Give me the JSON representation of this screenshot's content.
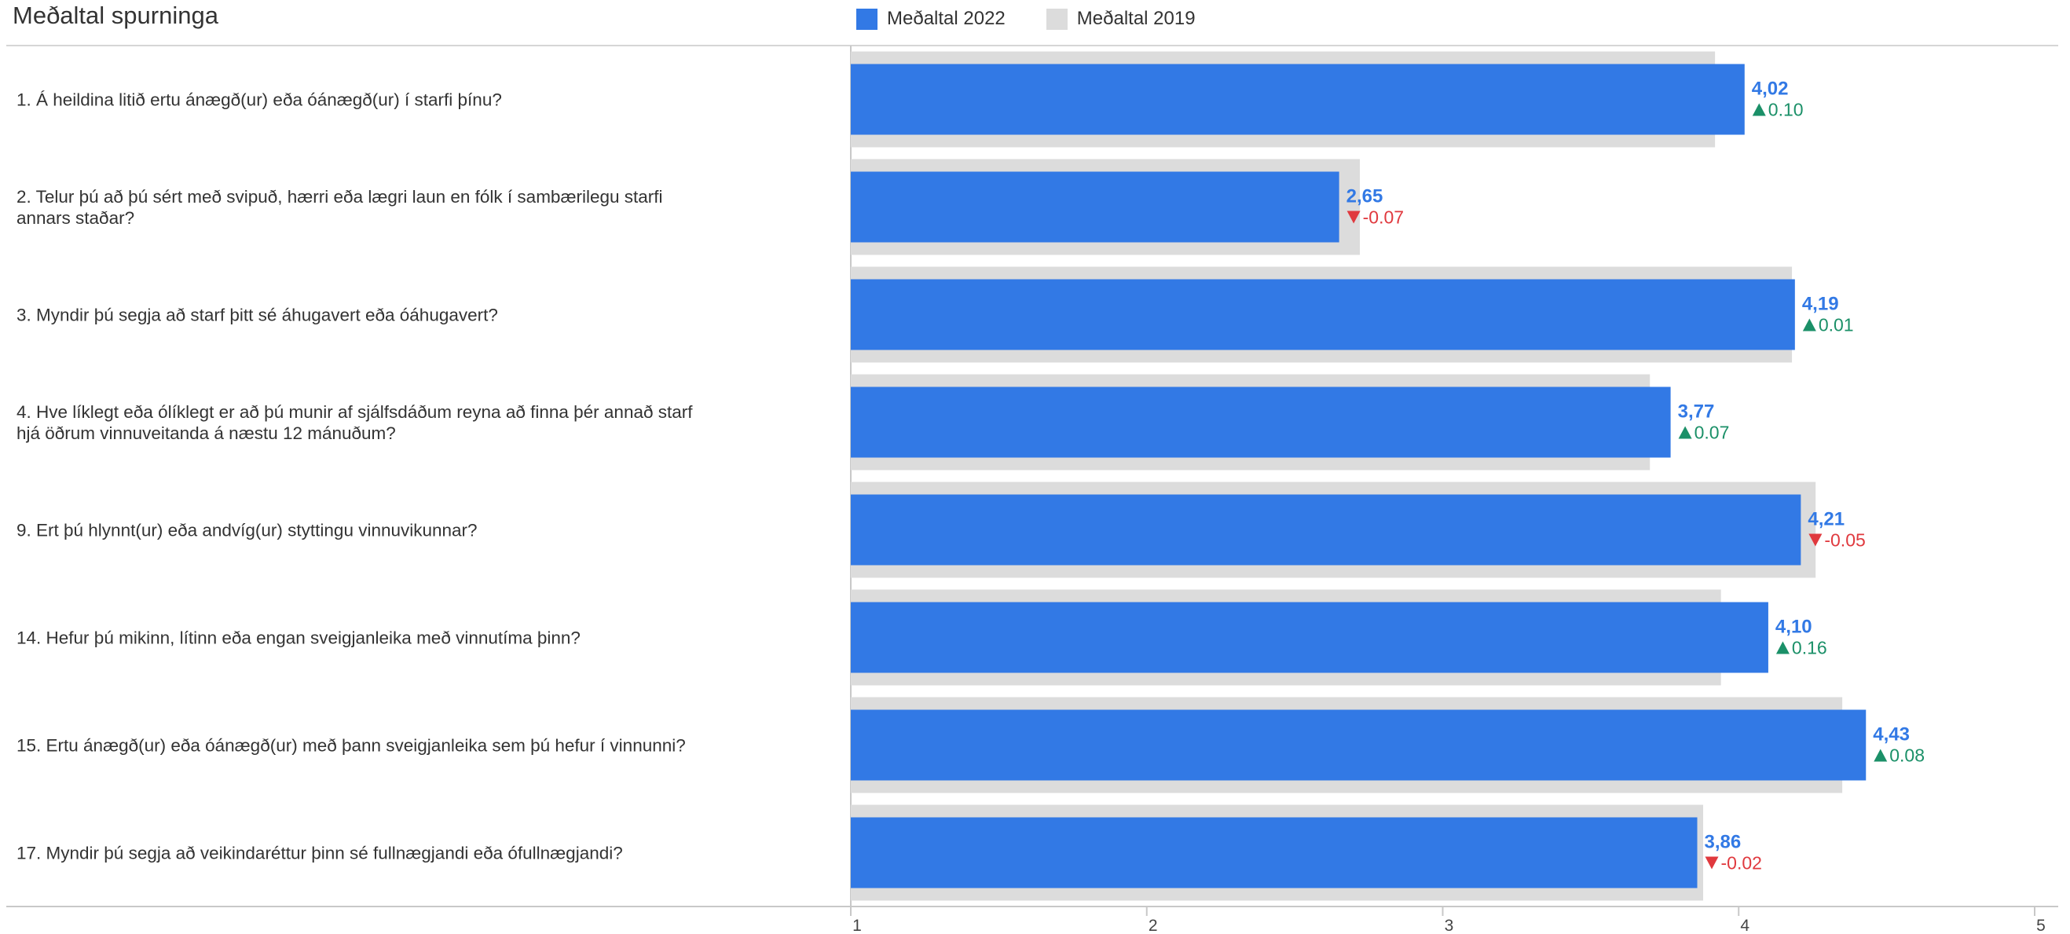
{
  "title": "Meðaltal spurninga",
  "legend": {
    "current_label": "Meðaltal 2022",
    "previous_label": "Meðaltal 2019"
  },
  "colors": {
    "current": "#3279e5",
    "previous": "#dcdcdc",
    "up": "#1b9068",
    "down": "#e0393e",
    "value_label": "#3279e5"
  },
  "chart_data": {
    "type": "bar",
    "orientation": "horizontal",
    "title": "Meðaltal spurninga",
    "categories": [
      "1. Á heildina litið ertu ánægð(ur) eða óánægð(ur) í starfi þínu?",
      "2. Telur þú að þú sért með svipuð, hærri eða lægri laun en fólk í sambærilegu starfi annars staðar?",
      "3. Myndir þú segja að starf þitt sé áhugavert eða óáhugavert?",
      "4. Hve líklegt eða ólíklegt er að þú munir af sjálfsdáðum reyna að finna þér annað starf hjá öðrum vinnuveitanda á næstu 12 mánuðum?",
      "9. Ert þú hlynnt(ur) eða andvíg(ur) styttingu vinnuvikunnar?",
      "14. Hefur þú mikinn, lítinn eða engan sveigjanleika með vinnutíma þinn?",
      "15. Ertu ánægð(ur) eða óánægð(ur) með þann sveigjanleika sem þú hefur í vinnunni?",
      "17. Myndir þú segja að veikindaréttur þinn sé fullnægjandi eða ófullnægjandi?"
    ],
    "series": [
      {
        "name": "Meðaltal 2022",
        "values": [
          4.02,
          2.65,
          4.19,
          3.77,
          4.21,
          4.1,
          4.43,
          3.86
        ]
      },
      {
        "name": "Meðaltal 2019",
        "values": [
          3.92,
          2.72,
          4.18,
          3.7,
          4.26,
          3.94,
          4.35,
          3.88
        ]
      }
    ],
    "value_labels": [
      "4,02",
      "2,65",
      "4,19",
      "3,77",
      "4,21",
      "4,10",
      "4,43",
      "3,86"
    ],
    "change_labels": [
      "0.10",
      "-0.07",
      "0.01",
      "0.07",
      "-0.05",
      "0.16",
      "0.08",
      "-0.02"
    ],
    "change_direction": [
      "up",
      "down",
      "up",
      "up",
      "down",
      "up",
      "up",
      "down"
    ],
    "xlim": [
      1,
      5
    ],
    "xticks": [
      "1",
      "2",
      "3",
      "4",
      "5"
    ],
    "legend_position": "top",
    "grid": false
  }
}
